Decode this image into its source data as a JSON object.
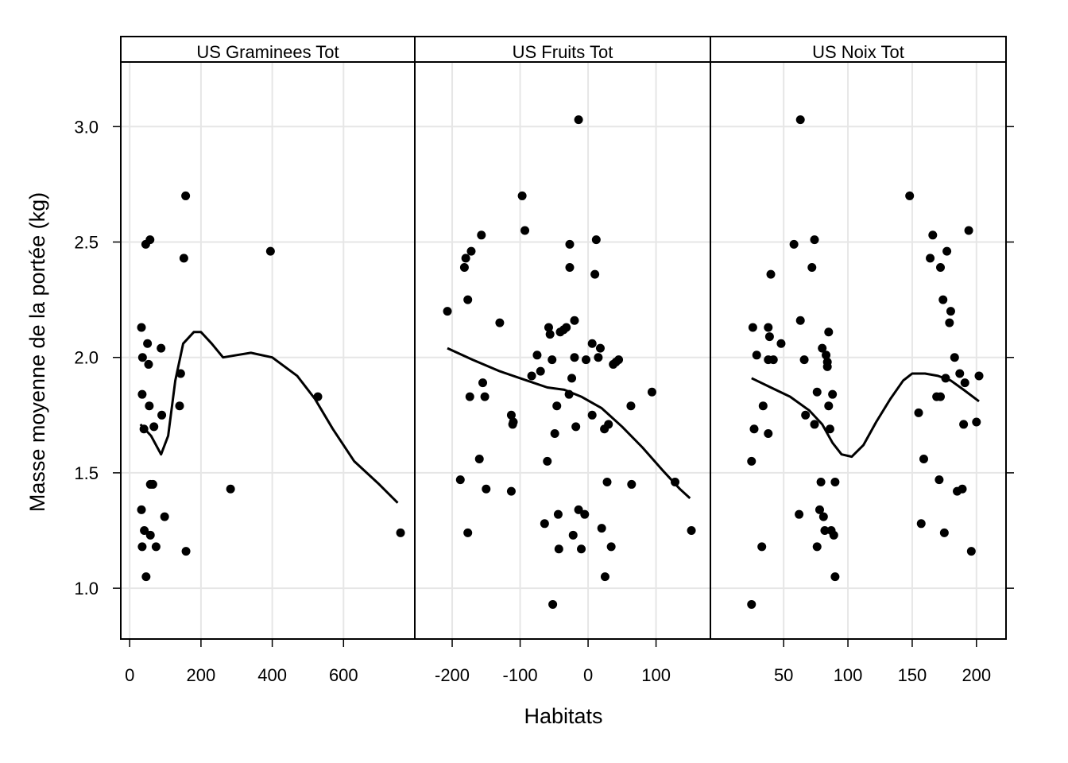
{
  "chart_data": {
    "type": "scatter",
    "xlabel": "Habitats",
    "ylabel": "Masse moyenne de la portée (kg)",
    "ylim": [
      0.78,
      3.28
    ],
    "yticks": [
      1.0,
      1.5,
      2.0,
      2.5,
      3.0
    ],
    "ytick_labels": [
      "1.0",
      "1.5",
      "2.0",
      "2.5",
      "3.0"
    ],
    "grid": true,
    "smoother": "loess",
    "panels": [
      {
        "name": "US_Graminees_Tot",
        "strip_label": "US  Graminees  Tot",
        "xlim": [
          -25,
          800
        ],
        "xticks": [
          0,
          200,
          400,
          600
        ],
        "xtick_labels": [
          "0",
          "200",
          "400",
          "600"
        ],
        "points": [
          [
            33,
            2.13
          ],
          [
            36,
            2.0
          ],
          [
            35,
            1.84
          ],
          [
            40,
            1.69
          ],
          [
            33,
            1.34
          ],
          [
            41,
            1.25
          ],
          [
            35,
            1.18
          ],
          [
            46,
            1.05
          ],
          [
            45,
            2.49
          ],
          [
            50,
            2.06
          ],
          [
            57,
            2.51
          ],
          [
            53,
            1.97
          ],
          [
            55,
            1.79
          ],
          [
            58,
            1.45
          ],
          [
            65,
            1.45
          ],
          [
            68,
            1.7
          ],
          [
            74,
            1.18
          ],
          [
            58,
            1.23
          ],
          [
            88,
            2.04
          ],
          [
            90,
            1.75
          ],
          [
            98,
            1.31
          ],
          [
            143,
            1.93
          ],
          [
            140,
            1.79
          ],
          [
            152,
            2.43
          ],
          [
            157,
            2.7
          ],
          [
            158,
            1.16
          ],
          [
            283,
            1.43
          ],
          [
            395,
            2.46
          ],
          [
            528,
            1.83
          ],
          [
            760,
            1.24
          ]
        ],
        "smooth": [
          [
            30,
            1.71
          ],
          [
            60,
            1.66
          ],
          [
            88,
            1.58
          ],
          [
            108,
            1.66
          ],
          [
            128,
            1.9
          ],
          [
            150,
            2.06
          ],
          [
            180,
            2.11
          ],
          [
            200,
            2.11
          ],
          [
            230,
            2.06
          ],
          [
            262,
            2.0
          ],
          [
            300,
            2.01
          ],
          [
            340,
            2.02
          ],
          [
            400,
            2.0
          ],
          [
            470,
            1.92
          ],
          [
            520,
            1.82
          ],
          [
            570,
            1.69
          ],
          [
            630,
            1.55
          ],
          [
            700,
            1.45
          ],
          [
            752,
            1.37
          ]
        ]
      },
      {
        "name": "US_Fruits_Tot",
        "strip_label": "US  Fruits  Tot",
        "xlim": [
          -255,
          180
        ],
        "xticks": [
          -200,
          -100,
          0,
          100
        ],
        "xtick_labels": [
          "-200",
          "-100",
          "0",
          "100"
        ],
        "points": [
          [
            -207,
            2.2
          ],
          [
            -188,
            1.47
          ],
          [
            -182,
            2.39
          ],
          [
            -180,
            2.43
          ],
          [
            -177,
            1.24
          ],
          [
            -177,
            2.25
          ],
          [
            -174,
            1.83
          ],
          [
            -172,
            2.46
          ],
          [
            -160,
            1.56
          ],
          [
            -157,
            2.53
          ],
          [
            -155,
            1.89
          ],
          [
            -152,
            1.83
          ],
          [
            -150,
            1.43
          ],
          [
            -130,
            2.15
          ],
          [
            -113,
            1.75
          ],
          [
            -113,
            1.42
          ],
          [
            -111,
            1.71
          ],
          [
            -110,
            1.72
          ],
          [
            -97,
            2.7
          ],
          [
            -93,
            2.55
          ],
          [
            -83,
            1.92
          ],
          [
            -75,
            2.01
          ],
          [
            -70,
            1.94
          ],
          [
            -64,
            1.28
          ],
          [
            -60,
            1.55
          ],
          [
            -58,
            2.13
          ],
          [
            -56,
            2.1
          ],
          [
            -53,
            1.99
          ],
          [
            -52,
            0.93
          ],
          [
            -49,
            1.67
          ],
          [
            -46,
            1.79
          ],
          [
            -44,
            1.32
          ],
          [
            -43,
            1.17
          ],
          [
            -41,
            2.11
          ],
          [
            -36,
            2.12
          ],
          [
            -32,
            2.13
          ],
          [
            -28,
            1.84
          ],
          [
            -27,
            2.49
          ],
          [
            -27,
            2.39
          ],
          [
            -24,
            1.91
          ],
          [
            -22,
            1.23
          ],
          [
            -20,
            2.16
          ],
          [
            -20,
            2.0
          ],
          [
            -18,
            1.7
          ],
          [
            -14,
            3.03
          ],
          [
            -14,
            1.34
          ],
          [
            -10,
            1.17
          ],
          [
            -5,
            1.32
          ],
          [
            -3,
            1.99
          ],
          [
            6,
            1.75
          ],
          [
            6,
            2.06
          ],
          [
            10,
            2.36
          ],
          [
            12,
            2.51
          ],
          [
            15,
            2.0
          ],
          [
            18,
            2.04
          ],
          [
            20,
            1.26
          ],
          [
            24,
            1.69
          ],
          [
            25,
            1.05
          ],
          [
            28,
            1.46
          ],
          [
            30,
            1.71
          ],
          [
            34,
            1.18
          ],
          [
            37,
            1.97
          ],
          [
            41,
            1.98
          ],
          [
            45,
            1.99
          ],
          [
            63,
            1.79
          ],
          [
            64,
            1.45
          ],
          [
            94,
            1.85
          ],
          [
            128,
            1.46
          ],
          [
            152,
            1.25
          ]
        ],
        "smooth": [
          [
            -207,
            2.04
          ],
          [
            -170,
            1.99
          ],
          [
            -130,
            1.94
          ],
          [
            -90,
            1.9
          ],
          [
            -60,
            1.87
          ],
          [
            -35,
            1.86
          ],
          [
            -10,
            1.83
          ],
          [
            20,
            1.78
          ],
          [
            50,
            1.7
          ],
          [
            80,
            1.61
          ],
          [
            110,
            1.51
          ],
          [
            135,
            1.43
          ],
          [
            150,
            1.39
          ]
        ]
      },
      {
        "name": "US_Noix_Tot",
        "strip_label": "US  Noix  Tot",
        "xlim": [
          -7,
          223
        ],
        "xticks": [
          50,
          100,
          150,
          200
        ],
        "xtick_labels": [
          "50",
          "100",
          "150",
          "200"
        ],
        "points": [
          [
            25,
            0.93
          ],
          [
            25,
            1.55
          ],
          [
            26,
            2.13
          ],
          [
            27,
            1.69
          ],
          [
            29,
            2.01
          ],
          [
            33,
            1.18
          ],
          [
            34,
            1.79
          ],
          [
            38,
            1.67
          ],
          [
            38,
            1.99
          ],
          [
            38,
            2.13
          ],
          [
            39,
            2.09
          ],
          [
            40,
            2.36
          ],
          [
            42,
            1.99
          ],
          [
            48,
            2.06
          ],
          [
            58,
            2.49
          ],
          [
            62,
            1.32
          ],
          [
            63,
            3.03
          ],
          [
            63,
            2.16
          ],
          [
            66,
            1.99
          ],
          [
            67,
            1.75
          ],
          [
            72,
            2.39
          ],
          [
            74,
            2.51
          ],
          [
            74,
            1.71
          ],
          [
            76,
            1.85
          ],
          [
            76,
            1.18
          ],
          [
            78,
            1.34
          ],
          [
            79,
            1.46
          ],
          [
            80,
            2.04
          ],
          [
            81,
            1.31
          ],
          [
            82,
            1.25
          ],
          [
            83,
            2.01
          ],
          [
            84,
            1.98
          ],
          [
            84,
            1.96
          ],
          [
            85,
            2.11
          ],
          [
            85,
            1.79
          ],
          [
            86,
            1.69
          ],
          [
            87,
            1.25
          ],
          [
            88,
            1.84
          ],
          [
            89,
            1.23
          ],
          [
            90,
            1.46
          ],
          [
            90,
            1.05
          ],
          [
            148,
            2.7
          ],
          [
            155,
            1.76
          ],
          [
            157,
            1.28
          ],
          [
            159,
            1.56
          ],
          [
            164,
            2.43
          ],
          [
            166,
            2.53
          ],
          [
            169,
            1.83
          ],
          [
            171,
            1.47
          ],
          [
            172,
            1.83
          ],
          [
            172,
            2.39
          ],
          [
            174,
            2.25
          ],
          [
            175,
            1.24
          ],
          [
            176,
            1.91
          ],
          [
            177,
            2.46
          ],
          [
            179,
            2.15
          ],
          [
            180,
            2.2
          ],
          [
            183,
            2.0
          ],
          [
            185,
            1.42
          ],
          [
            187,
            1.93
          ],
          [
            189,
            1.43
          ],
          [
            190,
            1.71
          ],
          [
            191,
            1.89
          ],
          [
            194,
            2.55
          ],
          [
            196,
            1.16
          ],
          [
            200,
            1.72
          ],
          [
            202,
            1.92
          ]
        ],
        "smooth": [
          [
            25,
            1.91
          ],
          [
            40,
            1.87
          ],
          [
            55,
            1.83
          ],
          [
            70,
            1.77
          ],
          [
            80,
            1.71
          ],
          [
            88,
            1.63
          ],
          [
            95,
            1.58
          ],
          [
            103,
            1.57
          ],
          [
            112,
            1.62
          ],
          [
            122,
            1.72
          ],
          [
            133,
            1.82
          ],
          [
            143,
            1.9
          ],
          [
            150,
            1.93
          ],
          [
            160,
            1.93
          ],
          [
            170,
            1.92
          ],
          [
            180,
            1.9
          ],
          [
            190,
            1.86
          ],
          [
            202,
            1.81
          ]
        ]
      }
    ]
  }
}
